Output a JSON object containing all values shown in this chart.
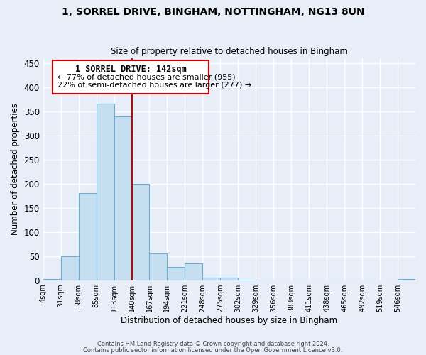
{
  "title": "1, SORREL DRIVE, BINGHAM, NOTTINGHAM, NG13 8UN",
  "subtitle": "Size of property relative to detached houses in Bingham",
  "xlabel": "Distribution of detached houses by size in Bingham",
  "ylabel": "Number of detached properties",
  "bin_labels": [
    "4sqm",
    "31sqm",
    "58sqm",
    "85sqm",
    "113sqm",
    "140sqm",
    "167sqm",
    "194sqm",
    "221sqm",
    "248sqm",
    "275sqm",
    "302sqm",
    "329sqm",
    "356sqm",
    "383sqm",
    "411sqm",
    "438sqm",
    "465sqm",
    "492sqm",
    "519sqm",
    "546sqm"
  ],
  "bar_values": [
    3,
    49,
    181,
    366,
    340,
    200,
    55,
    27,
    34,
    6,
    5,
    1,
    0,
    0,
    0,
    0,
    0,
    0,
    0,
    0,
    3
  ],
  "bar_color": "#c5dff0",
  "bar_edge_color": "#6aaed6",
  "marker_line_color": "#cc0000",
  "ylim": [
    0,
    460
  ],
  "yticks": [
    0,
    50,
    100,
    150,
    200,
    250,
    300,
    350,
    400,
    450
  ],
  "annotation_title": "1 SORREL DRIVE: 142sqm",
  "annotation_line1": "← 77% of detached houses are smaller (955)",
  "annotation_line2": "22% of semi-detached houses are larger (277) →",
  "annotation_box_color": "#cc0000",
  "footer1": "Contains HM Land Registry data © Crown copyright and database right 2024.",
  "footer2": "Contains public sector information licensed under the Open Government Licence v3.0.",
  "background_color": "#e8eef8",
  "grid_color": "#ffffff"
}
